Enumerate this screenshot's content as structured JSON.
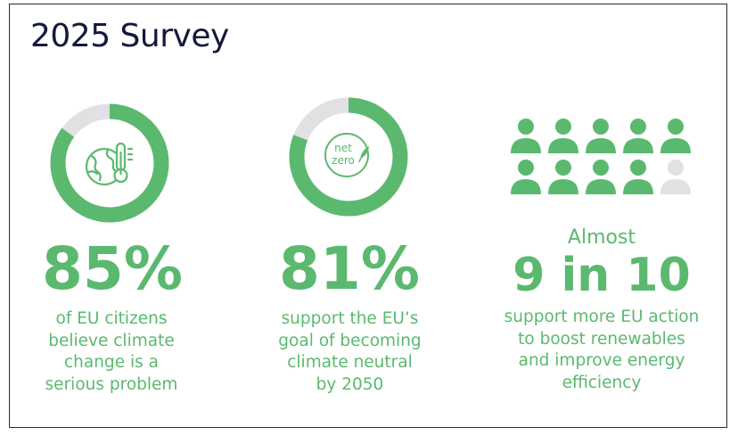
{
  "title": "2025 Survey",
  "colors": {
    "accent": "#5bb96f",
    "track": "#e1e0e2",
    "title": "#131a3a"
  },
  "chart_data": [
    {
      "type": "pie",
      "variant": "donut",
      "values": [
        85,
        15
      ],
      "big_label": "85%",
      "description": [
        "of EU citizens",
        "believe climate",
        "change is a",
        "serious problem"
      ],
      "icon": "globe-thermometer-icon"
    },
    {
      "type": "pie",
      "variant": "donut",
      "values": [
        81,
        19
      ],
      "big_label": "81%",
      "description": [
        "support the EU’s",
        "goal of becoming",
        "climate neutral",
        "by 2050"
      ],
      "icon": "net-zero-icon",
      "icon_text": [
        "net",
        "zero"
      ]
    },
    {
      "type": "pictogram",
      "filled": 9,
      "total": 10,
      "prefix": "Almost",
      "big_label": "9 in 10",
      "description": [
        "support more EU action",
        "to boost renewables",
        "and improve energy",
        "efficiency"
      ]
    }
  ]
}
